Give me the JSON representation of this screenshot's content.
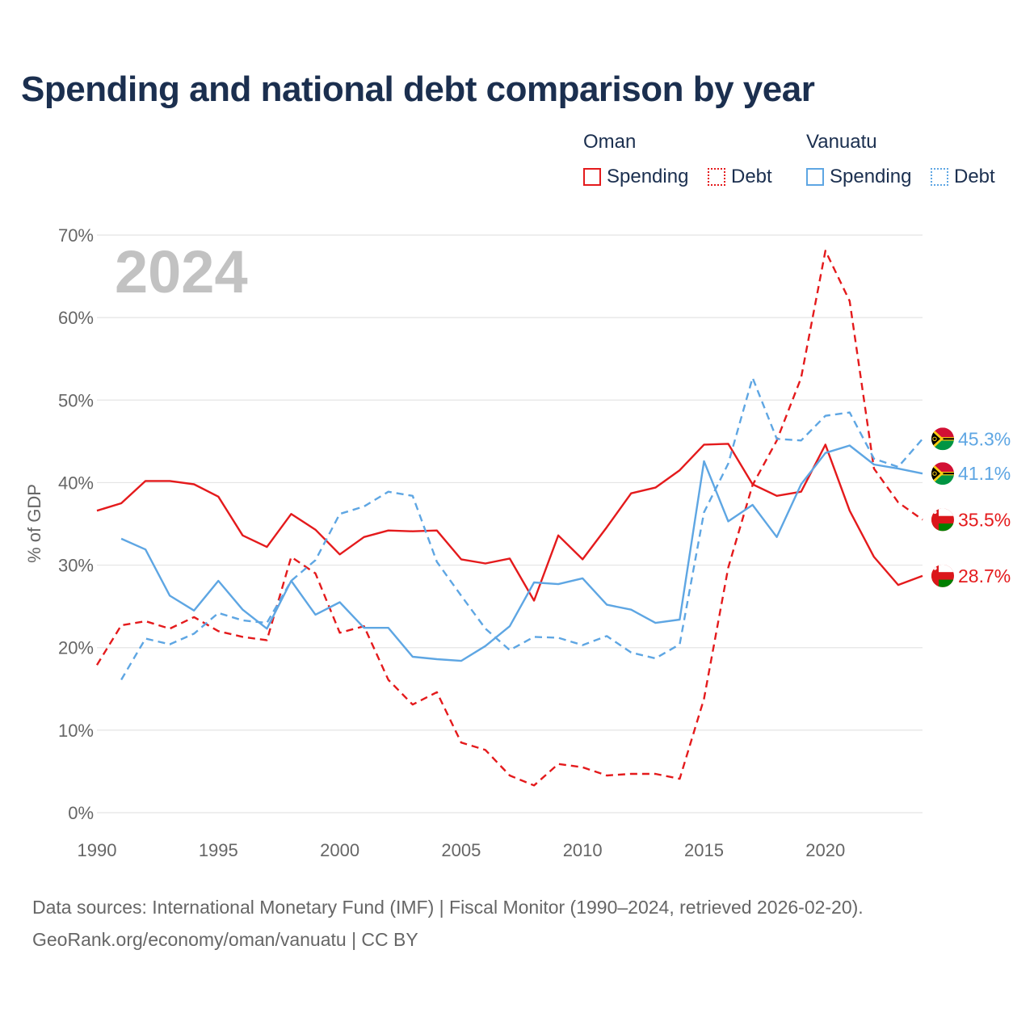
{
  "title": "Spending and national debt comparison by year",
  "legend": {
    "groups": [
      {
        "name": "Oman",
        "color": "#e41a1c",
        "items": [
          {
            "label": "Spending",
            "style": "solid"
          },
          {
            "label": "Debt",
            "style": "dotted"
          }
        ]
      },
      {
        "name": "Vanuatu",
        "color": "#5ea6e3",
        "items": [
          {
            "label": "Spending",
            "style": "solid"
          },
          {
            "label": "Debt",
            "style": "dotted"
          }
        ]
      }
    ]
  },
  "year_watermark": "2024",
  "sources": {
    "line1": "Data sources: International Monetary Fund (IMF) | Fiscal Monitor (1990–2024, retrieved 2026-02-20).",
    "line2": "GeoRank.org/economy/oman/vanuatu | CC BY"
  },
  "chart_data": {
    "type": "line",
    "title": "Spending and national debt comparison by year",
    "xlabel": "",
    "ylabel": "% of GDP",
    "xlim": [
      1990,
      2024
    ],
    "ylim": [
      0,
      70
    ],
    "x_ticks": [
      1990,
      1995,
      2000,
      2005,
      2010,
      2015,
      2020
    ],
    "y_ticks": [
      0,
      10,
      20,
      30,
      40,
      50,
      60,
      70
    ],
    "y_tick_labels": [
      "0%",
      "10%",
      "20%",
      "30%",
      "40%",
      "50%",
      "60%",
      "70%"
    ],
    "grid": true,
    "series": [
      {
        "name": "Oman Spending",
        "country": "Oman",
        "metric": "Spending",
        "color": "#e41a1c",
        "dash": false,
        "x": [
          1990,
          1991,
          1992,
          1993,
          1994,
          1995,
          1996,
          1997,
          1998,
          1999,
          2000,
          2001,
          2002,
          2003,
          2004,
          2005,
          2006,
          2007,
          2008,
          2009,
          2010,
          2011,
          2012,
          2013,
          2014,
          2015,
          2016,
          2017,
          2018,
          2019,
          2020,
          2021,
          2022,
          2023,
          2024
        ],
        "values": [
          36.6,
          37.5,
          40.2,
          40.2,
          39.8,
          38.3,
          33.6,
          32.2,
          36.2,
          34.3,
          31.3,
          33.4,
          34.2,
          34.1,
          34.2,
          30.7,
          30.2,
          30.8,
          25.7,
          33.6,
          30.7,
          34.6,
          38.7,
          39.4,
          41.5,
          44.6,
          44.7,
          39.8,
          38.4,
          38.9,
          44.6,
          36.6,
          31.0,
          27.6,
          28.7
        ],
        "end_label": "28.7%"
      },
      {
        "name": "Oman Debt",
        "country": "Oman",
        "metric": "Debt",
        "color": "#e41a1c",
        "dash": true,
        "x": [
          1990,
          1991,
          1992,
          1993,
          1994,
          1995,
          1996,
          1997,
          1998,
          1999,
          2000,
          2001,
          2002,
          2003,
          2004,
          2005,
          2006,
          2007,
          2008,
          2009,
          2010,
          2011,
          2012,
          2013,
          2014,
          2015,
          2016,
          2017,
          2018,
          2019,
          2020,
          2021,
          2022,
          2023,
          2024
        ],
        "values": [
          17.9,
          22.7,
          23.2,
          22.3,
          23.7,
          22.0,
          21.3,
          20.9,
          31.0,
          29.0,
          21.8,
          22.6,
          16.1,
          13.1,
          14.6,
          8.5,
          7.6,
          4.5,
          3.3,
          5.9,
          5.5,
          4.5,
          4.7,
          4.7,
          4.1,
          13.8,
          29.7,
          39.7,
          45.1,
          52.7,
          68.1,
          62.0,
          41.7,
          37.6,
          35.5
        ],
        "end_label": "35.5%"
      },
      {
        "name": "Vanuatu Spending",
        "country": "Vanuatu",
        "metric": "Spending",
        "color": "#5ea6e3",
        "dash": false,
        "x": [
          1991,
          1992,
          1993,
          1994,
          1995,
          1996,
          1997,
          1998,
          1999,
          2000,
          2001,
          2002,
          2003,
          2004,
          2005,
          2006,
          2007,
          2008,
          2009,
          2010,
          2011,
          2012,
          2013,
          2014,
          2015,
          2016,
          2017,
          2018,
          2019,
          2020,
          2021,
          2022,
          2023,
          2024
        ],
        "values": [
          33.2,
          31.9,
          26.3,
          24.5,
          28.1,
          24.6,
          22.3,
          28.1,
          24.0,
          25.5,
          22.4,
          22.4,
          18.9,
          18.6,
          18.4,
          20.2,
          22.6,
          27.9,
          27.7,
          28.4,
          25.2,
          24.6,
          23.0,
          23.4,
          42.6,
          35.3,
          37.3,
          33.4,
          39.8,
          43.6,
          44.5,
          42.2,
          41.7,
          41.1
        ],
        "end_label": "41.1%"
      },
      {
        "name": "Vanuatu Debt",
        "country": "Vanuatu",
        "metric": "Debt",
        "color": "#5ea6e3",
        "dash": true,
        "x": [
          1991,
          1992,
          1993,
          1994,
          1995,
          1996,
          1997,
          1998,
          1999,
          2000,
          2001,
          2002,
          2003,
          2004,
          2005,
          2006,
          2007,
          2008,
          2009,
          2010,
          2011,
          2012,
          2013,
          2014,
          2015,
          2016,
          2017,
          2018,
          2019,
          2020,
          2021,
          2022,
          2023,
          2024
        ],
        "values": [
          16.1,
          21.1,
          20.4,
          21.7,
          24.2,
          23.3,
          23.0,
          28.1,
          30.6,
          36.2,
          37.1,
          38.9,
          38.4,
          30.4,
          26.3,
          22.3,
          19.7,
          21.3,
          21.2,
          20.3,
          21.4,
          19.4,
          18.7,
          20.4,
          36.4,
          42.3,
          52.7,
          45.3,
          45.1,
          48.1,
          48.5,
          42.9,
          41.9,
          45.3
        ],
        "end_label": "45.3%"
      }
    ]
  }
}
